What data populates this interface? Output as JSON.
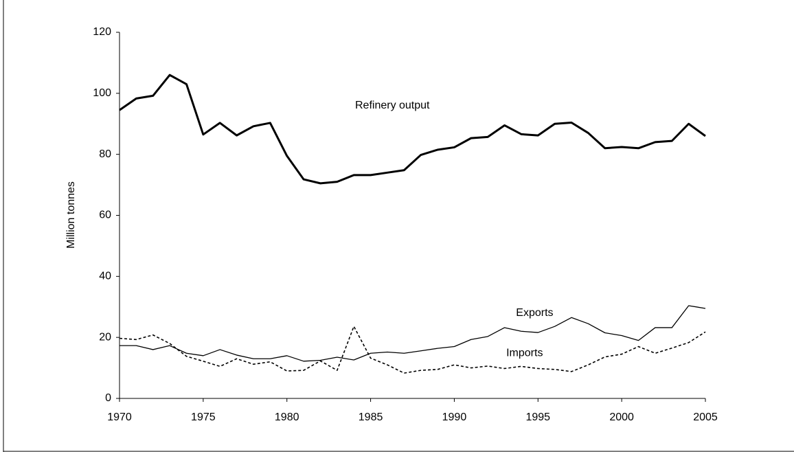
{
  "chart_data": {
    "type": "line",
    "ylabel": "Million tonnes",
    "x": [
      1970,
      1971,
      1972,
      1973,
      1974,
      1975,
      1976,
      1977,
      1978,
      1979,
      1980,
      1981,
      1982,
      1983,
      1984,
      1985,
      1986,
      1987,
      1988,
      1989,
      1990,
      1991,
      1992,
      1993,
      1994,
      1995,
      1996,
      1997,
      1998,
      1999,
      2000,
      2001,
      2002,
      2003,
      2004,
      2005
    ],
    "series": [
      {
        "name": "Refinery output",
        "color": "#000000",
        "line_style": "thick",
        "values": [
          94.5,
          98.3,
          99.2,
          106,
          103,
          86.5,
          90.3,
          86.2,
          89.2,
          90.3,
          79.5,
          71.8,
          70.5,
          71,
          73.2,
          73.2,
          74,
          74.8,
          79.8,
          81.5,
          82.3,
          85.3,
          85.7,
          89.5,
          86.6,
          86.2,
          90,
          90.4,
          87,
          82,
          82.4,
          82,
          84,
          84.4,
          90,
          86
        ]
      },
      {
        "name": "Exports",
        "color": "#000000",
        "line_style": "solid",
        "values": [
          17.3,
          17.3,
          16,
          17.3,
          14.8,
          14,
          16,
          14.2,
          13,
          13,
          14,
          12.2,
          12.5,
          13.5,
          12.6,
          14.8,
          15.2,
          14.8,
          15.6,
          16.4,
          17,
          19.3,
          20.3,
          23.2,
          22,
          21.6,
          23.6,
          26.5,
          24.5,
          21.5,
          20.6,
          19,
          23.2,
          23.2,
          30.4,
          29.5
        ]
      },
      {
        "name": "Imports",
        "color": "#000000",
        "line_style": "dashed",
        "values": [
          19.7,
          19.3,
          20.8,
          18,
          13.8,
          12.2,
          10.5,
          13,
          11.2,
          12,
          9,
          9.2,
          12.3,
          9.2,
          23.6,
          13.2,
          11,
          8.3,
          9.2,
          9.5,
          11,
          10,
          10.6,
          9.8,
          10.5,
          9.8,
          9.5,
          8.8,
          11,
          13.6,
          14.5,
          17,
          14.8,
          16.5,
          18.3,
          21.8
        ]
      }
    ],
    "xlim": [
      1970,
      2005
    ],
    "xticks": [
      1970,
      1975,
      1980,
      1985,
      1990,
      1995,
      2000,
      2005
    ],
    "ylim": [
      0,
      120
    ],
    "yticks": [
      0,
      20,
      40,
      60,
      80,
      100,
      120
    ],
    "grid": false,
    "legend": "inline"
  }
}
